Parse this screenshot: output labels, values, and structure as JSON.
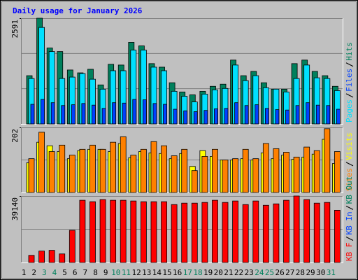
{
  "chart_data": [
    {
      "type": "bar",
      "title": "Daily usage for January 2026",
      "ylim": [
        0,
        2591
      ],
      "yticks": [
        2591
      ],
      "grid_divisions": 3,
      "series": [
        {
          "name": "Hits",
          "color": "#00805c",
          "values": [
            1182,
            2591,
            1861,
            1774,
            1322,
            1252,
            1339,
            956,
            1461,
            1443,
            2000,
            1913,
            1478,
            1391,
            1009,
            783,
            713,
            800,
            922,
            974,
            1565,
            1182,
            1287,
            1009,
            852,
            852,
            1478,
            1565,
            1287,
            1182,
            922
          ]
        },
        {
          "name": "Pages",
          "color": "#00e0ff",
          "values": [
            1113,
            2365,
            1774,
            1113,
            1148,
            1235,
            1096,
            852,
            1304,
            1304,
            1809,
            1809,
            1391,
            1304,
            800,
            678,
            539,
            730,
            835,
            870,
            1443,
            1061,
            1182,
            887,
            852,
            783,
            1113,
            1443,
            1130,
            1113,
            817
          ]
        },
        {
          "name": "Files",
          "color": "#0040ff",
          "values": [
            480,
            600,
            520,
            450,
            470,
            500,
            460,
            380,
            520,
            510,
            600,
            590,
            500,
            480,
            360,
            320,
            300,
            330,
            370,
            380,
            520,
            450,
            470,
            380,
            350,
            340,
            450,
            520,
            460,
            450,
            360
          ]
        }
      ]
    },
    {
      "type": "bar",
      "ylim": [
        0,
        202
      ],
      "yticks": [
        202
      ],
      "grid_divisions": 2,
      "series": [
        {
          "name": "Visits",
          "color": "#ffff00",
          "values": [
            92,
            156,
            145,
            127,
            105,
            130,
            134,
            134,
            127,
            152,
            108,
            127,
            123,
            121,
            105,
            121,
            81,
            130,
            112,
            101,
            101,
            105,
            101,
            123,
            105,
            116,
            103,
            110,
            119,
            165,
            90
          ]
        },
        {
          "name": "Sites",
          "color": "#ff8000",
          "values": [
            105,
            187,
            127,
            147,
            116,
            134,
            147,
            134,
            156,
            173,
            116,
            134,
            158,
            145,
            114,
            134,
            68,
            112,
            134,
            101,
            105,
            134,
            105,
            152,
            136,
            125,
            110,
            141,
            130,
            198,
            127
          ]
        }
      ]
    },
    {
      "type": "bar",
      "ylim": [
        0,
        39140
      ],
      "yticks": [
        39140
      ],
      "grid_divisions": 2,
      "categories": [
        "1",
        "2",
        "3",
        "4",
        "5",
        "6",
        "7",
        "8",
        "9",
        "10",
        "11",
        "12",
        "13",
        "14",
        "15",
        "16",
        "17",
        "18",
        "19",
        "20",
        "21",
        "22",
        "23",
        "24",
        "25",
        "26",
        "27",
        "28",
        "29",
        "30",
        "31"
      ],
      "category_colors": [
        "#000000",
        "#000000",
        "#00805c",
        "#00805c",
        "#000000",
        "#000000",
        "#000000",
        "#000000",
        "#000000",
        "#00805c",
        "#00805c",
        "#000000",
        "#000000",
        "#000000",
        "#000000",
        "#000000",
        "#00805c",
        "#00805c",
        "#000000",
        "#000000",
        "#000000",
        "#000000",
        "#000000",
        "#00805c",
        "#00805c",
        "#000000",
        "#000000",
        "#000000",
        "#000000",
        "#000000",
        "#00805c"
      ],
      "legend": [
        {
          "name": "KB F",
          "color": "#ff0000"
        },
        {
          "name": "KB In",
          "color": "#0040ff"
        },
        {
          "name": "KB Out",
          "color": "#00805c"
        }
      ],
      "series": [
        {
          "name": "KB F",
          "color": "#ff0000",
          "values": [
            4210,
            6740,
            7160,
            5050,
            18950,
            36630,
            35790,
            37050,
            36630,
            36630,
            36210,
            35790,
            35790,
            35790,
            34100,
            34940,
            34940,
            35370,
            36630,
            35370,
            36210,
            34100,
            36210,
            33680,
            34520,
            36630,
            39140,
            37050,
            34940,
            35370,
            30730
          ]
        }
      ]
    }
  ]
}
